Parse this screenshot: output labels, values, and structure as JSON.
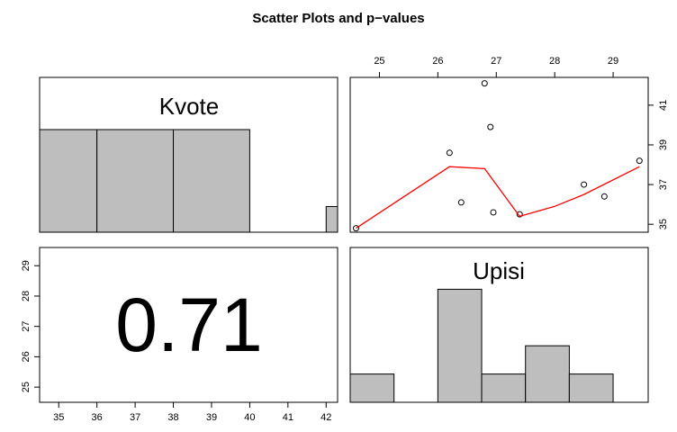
{
  "chart_data": {
    "type": "scatter",
    "title": "Scatter Plots and p−values",
    "variables": [
      "Kvote",
      "Upisi"
    ],
    "p_value": "0.71",
    "kvote_ticks": [
      35,
      36,
      37,
      38,
      39,
      40,
      41,
      42
    ],
    "kvote_range": [
      34.5,
      42.3
    ],
    "upisi_ticks": [
      25,
      26,
      27,
      28,
      29
    ],
    "upisi_range": [
      24.5,
      29.6
    ],
    "kvote_side_ticks": [
      35,
      37,
      39,
      41
    ],
    "upisi_side_ticks": [
      25,
      26,
      27,
      28,
      29
    ],
    "scatter_y_range": [
      34.6,
      42.4
    ],
    "hist_kvote": {
      "bins": [
        [
          34.5,
          36
        ],
        [
          36,
          38
        ],
        [
          38,
          40
        ],
        [
          40,
          42
        ],
        [
          42,
          42.3
        ]
      ],
      "heights": [
        1,
        1,
        1,
        0,
        0.25
      ],
      "max": 1.0
    },
    "hist_upisi": {
      "bins": [
        [
          24.5,
          25.25
        ],
        [
          25.25,
          26.0
        ],
        [
          26.0,
          26.75
        ],
        [
          26.75,
          27.5
        ],
        [
          27.5,
          28.25
        ],
        [
          28.25,
          29.0
        ],
        [
          29.0,
          29.6
        ]
      ],
      "heights": [
        1,
        0,
        4,
        1,
        2,
        1,
        0
      ],
      "max": 5.0
    },
    "scatter": {
      "x": [
        24.6,
        26.2,
        26.4,
        26.8,
        26.9,
        26.95,
        27.4,
        28.5,
        28.85,
        29.45
      ],
      "y": [
        34.8,
        38.6,
        36.1,
        42.1,
        39.9,
        35.6,
        35.5,
        37.0,
        36.4,
        38.2
      ]
    },
    "smooth_line": {
      "x": [
        24.6,
        26.2,
        26.8,
        27.0,
        27.4,
        28.0,
        28.5,
        29.45
      ],
      "y": [
        34.8,
        37.9,
        37.8,
        37.0,
        35.4,
        35.9,
        36.5,
        37.9
      ]
    }
  }
}
